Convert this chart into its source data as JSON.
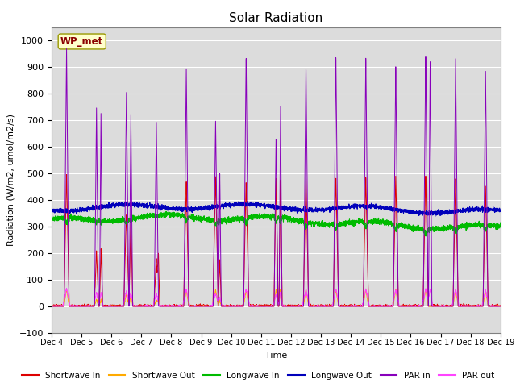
{
  "title": "Solar Radiation",
  "xlabel": "Time",
  "ylabel": "Radiation (W/m2, umol/m2/s)",
  "ylim": [
    -100,
    1050
  ],
  "yticks": [
    -100,
    0,
    100,
    200,
    300,
    400,
    500,
    600,
    700,
    800,
    900,
    1000
  ],
  "bg_color": "#dcdcdc",
  "station_label": "WP_met",
  "colors": {
    "shortwave_in": "#dd0000",
    "shortwave_out": "#ffaa00",
    "longwave_in": "#00bb00",
    "longwave_out": "#0000bb",
    "par_in": "#8800bb",
    "par_out": "#ff44ff"
  },
  "legend": [
    {
      "label": "Shortwave In",
      "color": "#dd0000"
    },
    {
      "label": "Shortwave Out",
      "color": "#ffaa00"
    },
    {
      "label": "Longwave In",
      "color": "#00bb00"
    },
    {
      "label": "Longwave Out",
      "color": "#0000bb"
    },
    {
      "label": "PAR in",
      "color": "#8800bb"
    },
    {
      "label": "PAR out",
      "color": "#ff44ff"
    }
  ],
  "n_days": 15,
  "start_day": 4,
  "points_per_day": 288,
  "figsize": [
    6.4,
    4.8
  ],
  "dpi": 100
}
